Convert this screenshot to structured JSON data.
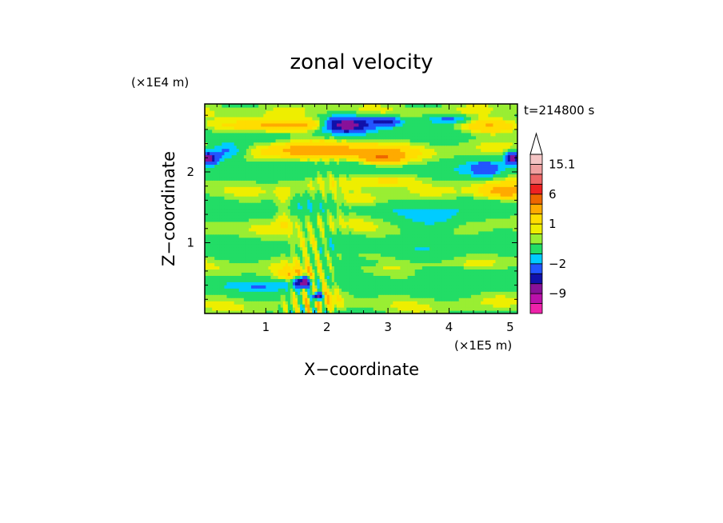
{
  "chart_data": {
    "type": "heatmap",
    "title": "zonal velocity",
    "xlabel": "X−coordinate",
    "ylabel": "Z−coordinate",
    "x_unit": "(×1E5 m)",
    "y_unit": "(×1E4 m)",
    "time_label": "t=214800 s",
    "xlim": [
      0,
      5.12
    ],
    "ylim": [
      0,
      2.96
    ],
    "x_ticks": [
      1,
      2,
      3,
      4,
      5
    ],
    "x_tick_labels": [
      "1",
      "2",
      "3",
      "4",
      "5"
    ],
    "y_ticks": [
      1,
      2
    ],
    "y_tick_labels": [
      "1",
      "2"
    ],
    "colorbar": {
      "levels": [
        -15,
        -12,
        -9,
        -6,
        -4,
        -2,
        -1,
        0,
        0.5,
        1,
        2,
        4,
        6,
        9,
        12,
        15.1
      ],
      "colors": [
        "#ee22aa",
        "#bb11aa",
        "#881199",
        "#1111aa",
        "#2255ff",
        "#00ccff",
        "#22dd66",
        "#99ee33",
        "#eeee00",
        "#ffdd00",
        "#ffaa00",
        "#ee6600",
        "#ee2222",
        "#ee6666",
        "#f0a0a0",
        "#f4c4c4"
      ],
      "tick_labels": [
        {
          "value": 15.1,
          "label": "15.1"
        },
        {
          "value": 6,
          "label": "6"
        },
        {
          "value": 1,
          "label": "1"
        },
        {
          "value": -2,
          "label": "−2"
        },
        {
          "value": -9,
          "label": "−9"
        }
      ]
    }
  }
}
